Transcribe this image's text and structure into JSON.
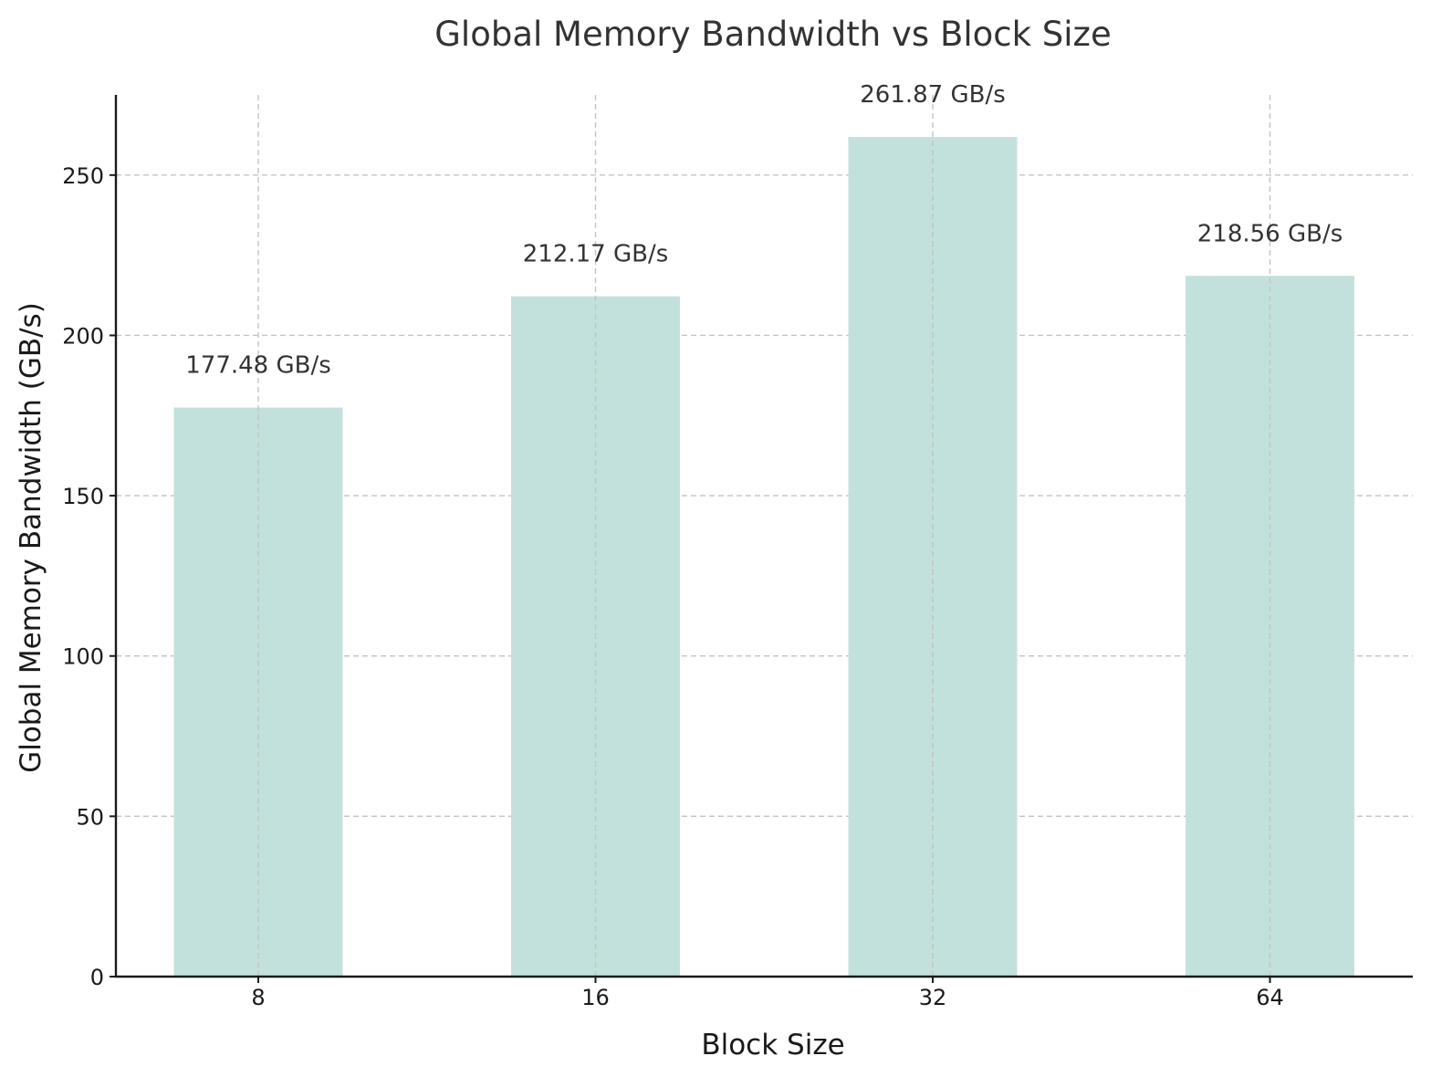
{
  "chart_data": {
    "type": "bar",
    "title": "Global Memory Bandwidth vs Block Size",
    "xlabel": "Block Size",
    "ylabel": "Global Memory Bandwidth (GB/s)",
    "categories": [
      "8",
      "16",
      "32",
      "64"
    ],
    "values": [
      177.48,
      212.17,
      261.87,
      218.56
    ],
    "data_labels": [
      "177.48 GB/s",
      "212.17 GB/s",
      "261.87 GB/s",
      "218.56 GB/s"
    ],
    "ylim": [
      0,
      275
    ],
    "yticks": [
      0,
      50,
      100,
      150,
      200,
      250
    ],
    "grid": true,
    "bar_color": "#c3e1dc"
  }
}
